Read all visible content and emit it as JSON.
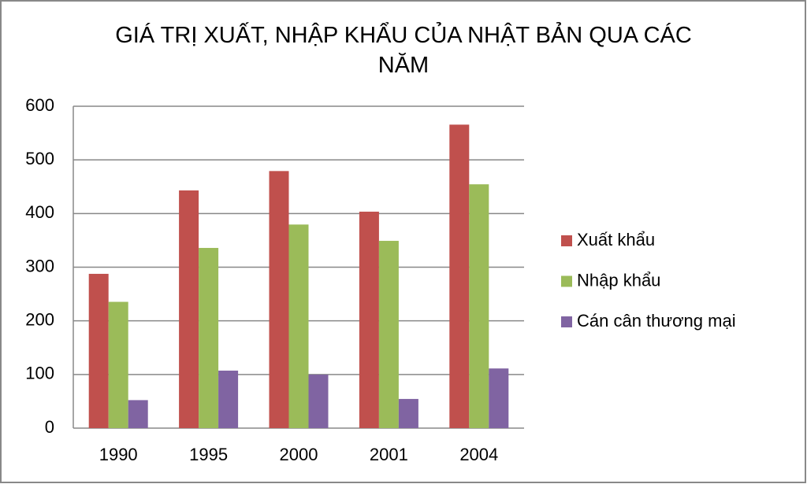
{
  "chart_data": {
    "type": "bar",
    "title": "GIÁ TRỊ XUẤT, NHẬP KHẨU CỦA NHẬT BẢN QUA CÁC NĂM",
    "categories": [
      "1990",
      "1995",
      "2000",
      "2001",
      "2004"
    ],
    "series": [
      {
        "name": "Xuất khẩu",
        "color": "#c0504d",
        "values": [
          287.6,
          443.1,
          479.2,
          403.5,
          565.7
        ]
      },
      {
        "name": "Nhập khẩu",
        "color": "#9bbb59",
        "values": [
          235.4,
          335.9,
          379.5,
          349.1,
          454.5
        ]
      },
      {
        "name": "Cán cân thương mại",
        "color": "#8064a2",
        "values": [
          52.2,
          107.2,
          99.7,
          54.4,
          111.2
        ]
      }
    ],
    "ylim": [
      0,
      600
    ],
    "yticks": [
      0,
      100,
      200,
      300,
      400,
      500,
      600
    ],
    "grid": true,
    "legend": "right"
  }
}
